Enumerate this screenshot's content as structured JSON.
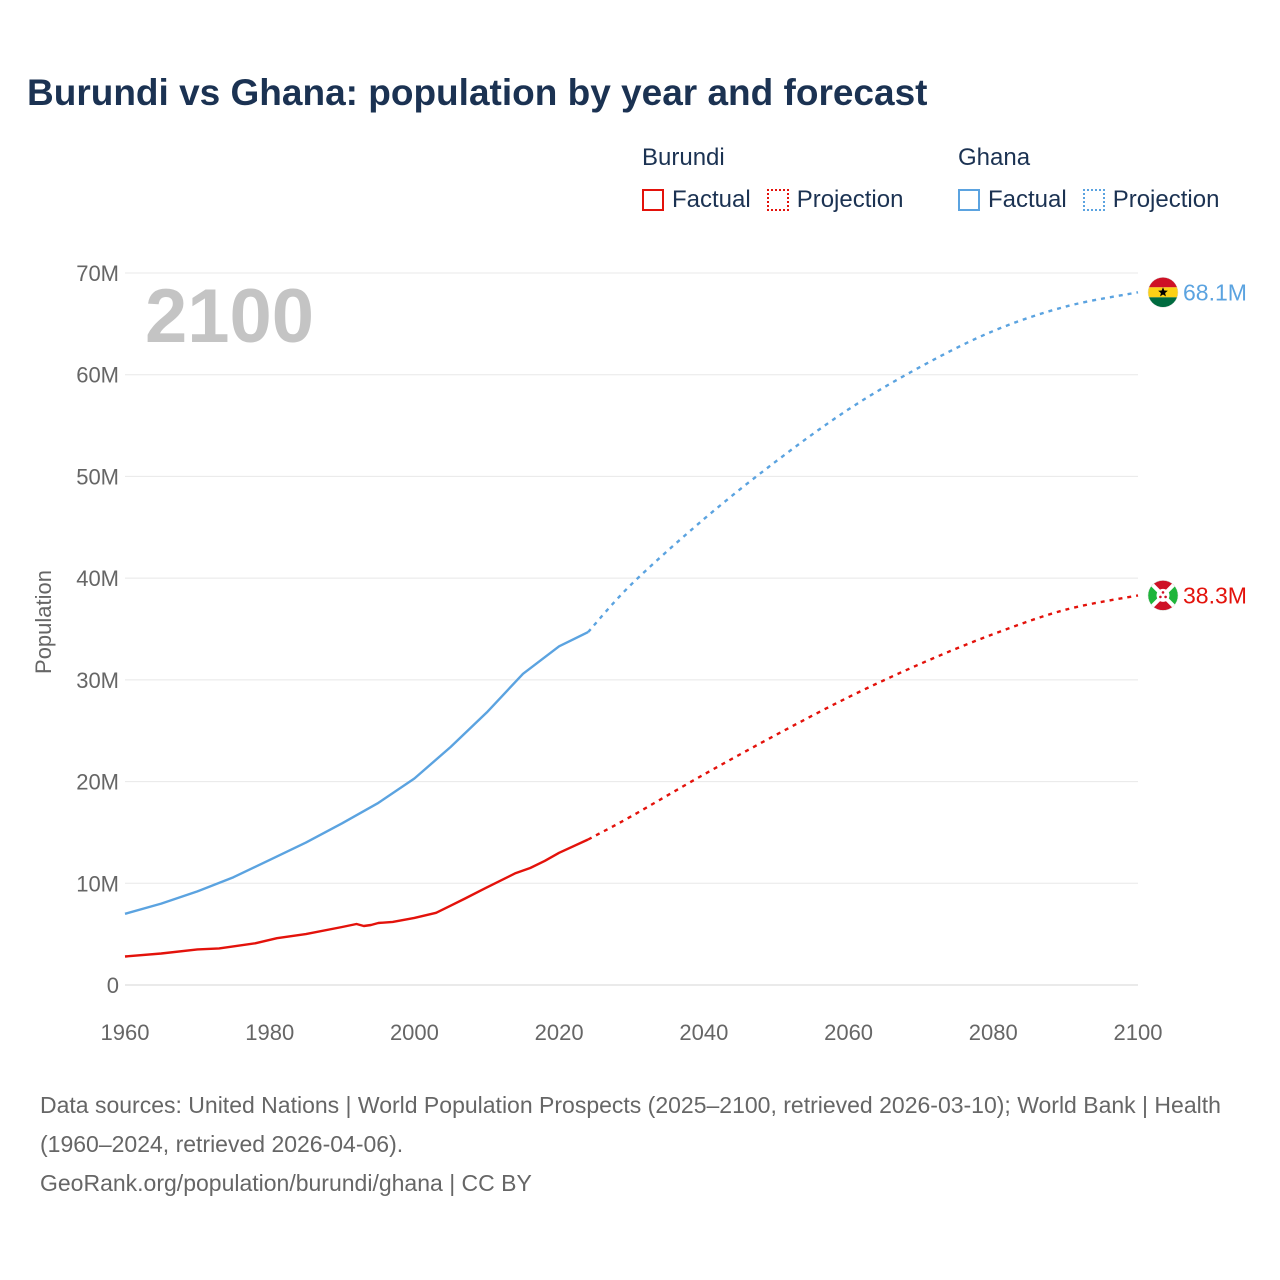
{
  "header": {
    "title": "Burundi vs Ghana: population by year and forecast"
  },
  "legend": {
    "groups": [
      {
        "name": "Burundi",
        "factual_label": "Factual",
        "projection_label": "Projection",
        "color": "#e3120b"
      },
      {
        "name": "Ghana",
        "factual_label": "Factual",
        "projection_label": "Projection",
        "color": "#5ba3e0"
      }
    ]
  },
  "year_watermark": "2100",
  "chart_data": {
    "type": "line",
    "title": "Burundi vs Ghana: population by year and forecast",
    "xlabel": "",
    "ylabel": "Population",
    "xlim": [
      1960,
      2100
    ],
    "ylim": [
      0,
      70000000
    ],
    "x_ticks": [
      "1960",
      "1980",
      "2000",
      "2020",
      "2040",
      "2060",
      "2080",
      "2100"
    ],
    "y_ticks": [
      "0",
      "10M",
      "20M",
      "30M",
      "40M",
      "50M",
      "60M",
      "70M"
    ],
    "grid": true,
    "series": [
      {
        "name": "Burundi",
        "color": "#e3120b",
        "end_label": "38.3M",
        "flag": "burundi-flag",
        "factual": [
          [
            1960,
            2.8
          ],
          [
            1965,
            3.1
          ],
          [
            1970,
            3.5
          ],
          [
            1973,
            3.6
          ],
          [
            1978,
            4.1
          ],
          [
            1981,
            4.6
          ],
          [
            1985,
            5.0
          ],
          [
            1990,
            5.7
          ],
          [
            1992,
            6.0
          ],
          [
            1993,
            5.8
          ],
          [
            1994,
            5.9
          ],
          [
            1995,
            6.1
          ],
          [
            1997,
            6.2
          ],
          [
            2000,
            6.6
          ],
          [
            2003,
            7.1
          ],
          [
            2005,
            7.8
          ],
          [
            2007,
            8.5
          ],
          [
            2010,
            9.6
          ],
          [
            2014,
            11.0
          ],
          [
            2016,
            11.5
          ],
          [
            2018,
            12.2
          ],
          [
            2020,
            13.0
          ],
          [
            2024,
            14.3
          ]
        ],
        "projection": [
          [
            2024,
            14.3
          ],
          [
            2030,
            16.6
          ],
          [
            2040,
            20.7
          ],
          [
            2050,
            24.6
          ],
          [
            2060,
            28.3
          ],
          [
            2070,
            31.6
          ],
          [
            2080,
            34.5
          ],
          [
            2090,
            36.9
          ],
          [
            2100,
            38.3
          ]
        ]
      },
      {
        "name": "Ghana",
        "color": "#5ba3e0",
        "end_label": "68.1M",
        "flag": "ghana-flag",
        "factual": [
          [
            1960,
            7.0
          ],
          [
            1965,
            8.0
          ],
          [
            1970,
            9.2
          ],
          [
            1975,
            10.6
          ],
          [
            1980,
            12.3
          ],
          [
            1985,
            14.0
          ],
          [
            1990,
            15.9
          ],
          [
            1995,
            17.9
          ],
          [
            2000,
            20.3
          ],
          [
            2005,
            23.4
          ],
          [
            2010,
            26.8
          ],
          [
            2015,
            30.6
          ],
          [
            2020,
            33.3
          ],
          [
            2024,
            34.7
          ]
        ],
        "projection": [
          [
            2024,
            34.7
          ],
          [
            2030,
            39.4
          ],
          [
            2040,
            45.8
          ],
          [
            2050,
            51.5
          ],
          [
            2060,
            56.6
          ],
          [
            2070,
            60.8
          ],
          [
            2080,
            64.3
          ],
          [
            2090,
            66.7
          ],
          [
            2100,
            68.1
          ]
        ]
      }
    ]
  },
  "footer": {
    "sources": "Data sources: United Nations | World Population Prospects (2025–2100, retrieved 2026-03-10); World Bank | Health (1960–2024, retrieved 2026-04-06).",
    "credit": "GeoRank.org/population/burundi/ghana | CC BY"
  }
}
